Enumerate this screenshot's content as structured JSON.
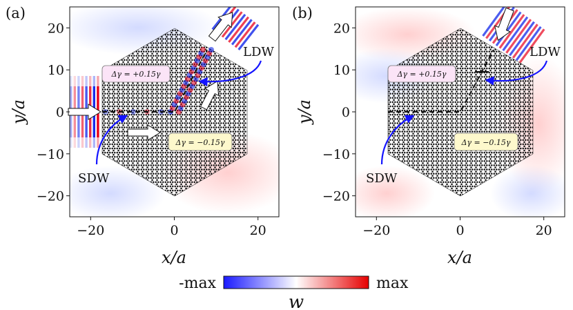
{
  "figure": {
    "panels": [
      {
        "label": "(a)",
        "xlabel": "x/a",
        "ylabel": "y/a",
        "xticks": [
          -20,
          0,
          20
        ],
        "yticks": [
          20,
          10,
          0,
          -10,
          -20
        ],
        "box_upper": "Δγ = +0.15γ",
        "box_lower": "Δγ = −0.15γ",
        "ann_sdw": "SDW",
        "ann_ldw": "LDW"
      },
      {
        "label": "(b)",
        "xlabel": "x/a",
        "ylabel": "y/a",
        "xticks": [
          -20,
          0,
          20
        ],
        "yticks": [
          20,
          10,
          0,
          -10,
          -20
        ],
        "box_upper": "Δγ = +0.15γ",
        "box_lower": "Δγ = −0.15γ",
        "ann_sdw": "SDW",
        "ann_ldw": "LDW"
      }
    ],
    "colorbar": {
      "min_label": "-max",
      "max_label": "max",
      "quantity": "w",
      "colors": [
        "#1a1aff",
        "#ffffff",
        "#e60000"
      ]
    },
    "colors": {
      "positive": "#e8001a",
      "negative": "#0018e8",
      "lattice": "#111111",
      "upper_box_fill": "#fbe4f7",
      "lower_box_fill": "#fdf8cc",
      "annotation_arrow": "#1414ff"
    }
  }
}
